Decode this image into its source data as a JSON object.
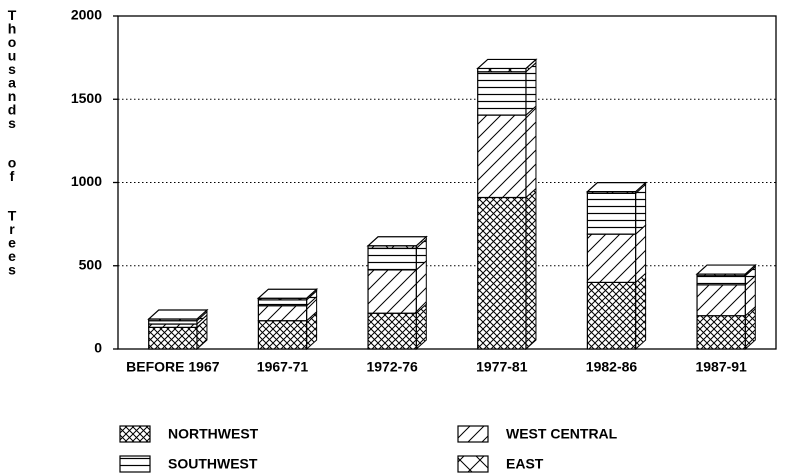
{
  "chart_data": {
    "type": "bar3d_stacked",
    "y_label": "Thousands of Trees",
    "categories": [
      "BEFORE 1967",
      "1967-71",
      "1972-76",
      "1977-81",
      "1982-86",
      "1987-91"
    ],
    "series": [
      {
        "name": "NORTHWEST",
        "color": "#000000",
        "pattern": "crosshatch",
        "values": [
          130,
          170,
          215,
          910,
          400,
          200
        ]
      },
      {
        "name": "WEST CENTRAL",
        "color": "#000000",
        "pattern": "diagonal",
        "values": [
          20,
          90,
          260,
          495,
          290,
          185
        ]
      },
      {
        "name": "SOUTHWEST",
        "color": "#000000",
        "pattern": "horizontal",
        "values": [
          20,
          35,
          130,
          260,
          245,
          55
        ]
      },
      {
        "name": "EAST",
        "color": "#000000",
        "pattern": "x",
        "values": [
          10,
          10,
          15,
          20,
          10,
          10
        ]
      }
    ],
    "ylim": [
      0,
      2000
    ],
    "yticks": [
      0,
      500,
      1000,
      1500,
      2000
    ],
    "grid": true
  }
}
